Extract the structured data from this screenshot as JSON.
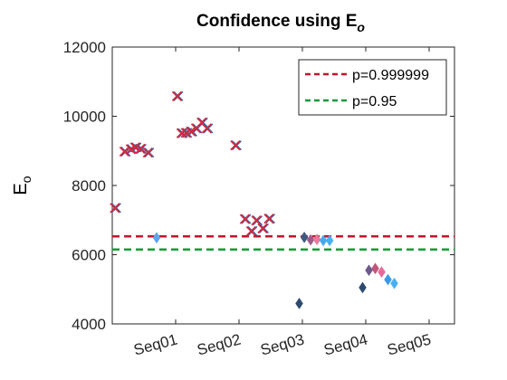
{
  "chart_data": {
    "type": "scatter",
    "title": "Confidence using E",
    "title_sub": "o",
    "xlabel": "",
    "ylabel": "E",
    "ylabel_sub": "o",
    "ylim": [
      4000,
      12000
    ],
    "yticks": [
      4000,
      6000,
      8000,
      10000,
      12000
    ],
    "ytick_labels": [
      "4000",
      "6000",
      "8000",
      "10000",
      "12000"
    ],
    "xlim": [
      0,
      5.4
    ],
    "xticks": [
      1,
      2,
      3,
      4,
      5
    ],
    "xtick_labels": [
      "Seq01",
      "Seq02",
      "Seq03",
      "Seq04",
      "Seq05"
    ],
    "grid": false,
    "legend_placement": "top-right",
    "thresholds": [
      {
        "name": "p=0.999999",
        "value": 6530,
        "color": "#c0172b",
        "dash": "dashed"
      },
      {
        "name": "p=0.95",
        "value": 6150,
        "color": "#1a9a3a",
        "dash": "dashed"
      }
    ],
    "cross_points": [
      {
        "x": 0.05,
        "y": 7350
      },
      {
        "x": 0.2,
        "y": 8980
      },
      {
        "x": 0.3,
        "y": 9050
      },
      {
        "x": 0.37,
        "y": 9100
      },
      {
        "x": 0.45,
        "y": 9060
      },
      {
        "x": 0.57,
        "y": 8950
      },
      {
        "x": 1.03,
        "y": 10580
      },
      {
        "x": 1.1,
        "y": 9510
      },
      {
        "x": 1.17,
        "y": 9520
      },
      {
        "x": 1.25,
        "y": 9560
      },
      {
        "x": 1.33,
        "y": 9650
      },
      {
        "x": 1.42,
        "y": 9820
      },
      {
        "x": 1.5,
        "y": 9650
      },
      {
        "x": 1.95,
        "y": 9160
      },
      {
        "x": 2.1,
        "y": 7030
      },
      {
        "x": 2.2,
        "y": 6680
      },
      {
        "x": 2.28,
        "y": 6990
      },
      {
        "x": 2.38,
        "y": 6760
      },
      {
        "x": 2.48,
        "y": 7040
      }
    ],
    "diamond_points": [
      {
        "x": 0.7,
        "y": 6490,
        "color": "#5ba4f0"
      },
      {
        "x": 2.95,
        "y": 4590,
        "color": "#2e4a6e"
      },
      {
        "x": 3.03,
        "y": 6500,
        "color": "#3e5a80"
      },
      {
        "x": 3.13,
        "y": 6430,
        "color": "#a25a8a"
      },
      {
        "x": 3.23,
        "y": 6440,
        "color": "#e87a9a"
      },
      {
        "x": 3.33,
        "y": 6410,
        "color": "#4aa8e8"
      },
      {
        "x": 3.43,
        "y": 6410,
        "color": "#4ab0f0"
      },
      {
        "x": 3.95,
        "y": 5050,
        "color": "#2e4a6e"
      },
      {
        "x": 4.05,
        "y": 5550,
        "color": "#6a5a8a"
      },
      {
        "x": 4.15,
        "y": 5600,
        "color": "#c2557a"
      },
      {
        "x": 4.25,
        "y": 5500,
        "color": "#e86a9a"
      },
      {
        "x": 4.35,
        "y": 5280,
        "color": "#3a9ae8"
      },
      {
        "x": 4.45,
        "y": 5170,
        "color": "#4aaef0"
      }
    ]
  }
}
